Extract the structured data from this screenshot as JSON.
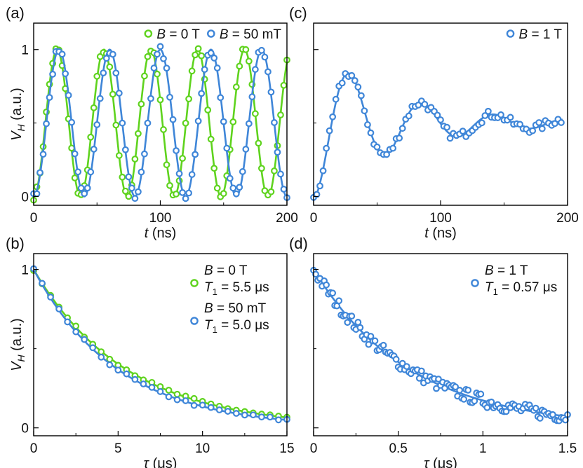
{
  "colors": {
    "green": "#5fd31e",
    "blue": "#3f86d8",
    "axis": "#000000"
  },
  "chart_data": [
    {
      "panel": "a",
      "panel_label": "(a)",
      "type": "scatter",
      "xlabel_var": "t",
      "xlabel_unit": " (ns)",
      "ylabel_var": "V",
      "ylabel_sub": "H",
      "ylabel_unit": " (a.u.)",
      "xlim": [
        0,
        200
      ],
      "ylim": [
        -0.06,
        1.18
      ],
      "xticks": [
        0,
        100,
        200
      ],
      "xtick_labels": [
        "0",
        "100",
        "200"
      ],
      "xminor": [
        50,
        150
      ],
      "yticks": [
        0,
        1
      ],
      "ytick_labels": [
        "0",
        "1"
      ],
      "yminor": [
        0.5
      ],
      "legend_position": "top-right",
      "legend_layout": "row",
      "series": [
        {
          "name": "B = 0 T",
          "legend_var": "B",
          "legend_text": " = 0 T",
          "color_key": "green",
          "model": "rabi",
          "params": {
            "period_ns": 37.0,
            "phase_ns": 0.0
          },
          "x_step": 2.5,
          "x_start": 0,
          "x_end": 200,
          "noise": 0.025
        },
        {
          "name": "B = 50 mT",
          "legend_var": "B",
          "legend_text": " = 50 mT",
          "color_key": "blue",
          "model": "rabi",
          "params": {
            "period_ns": 40.0,
            "phase_ns": 0.0
          },
          "x_step": 2.5,
          "x_start": 0,
          "x_end": 200,
          "noise": 0.025
        }
      ]
    },
    {
      "panel": "c",
      "panel_label": "(c)",
      "type": "scatter",
      "xlabel_var": "t",
      "xlabel_unit": " (ns)",
      "xlim": [
        0,
        200
      ],
      "ylim": [
        -0.06,
        1.18
      ],
      "xticks": [
        0,
        100,
        200
      ],
      "xtick_labels": [
        "0",
        "100",
        "200"
      ],
      "xminor": [
        50,
        150
      ],
      "yticks": [
        0,
        1
      ],
      "ytick_labels": [],
      "yminor": [
        0.5
      ],
      "legend_position": "top-right",
      "legend_layout": "row",
      "series": [
        {
          "name": "B = 1 T",
          "legend_var": "B",
          "legend_text": " = 1 T",
          "color_key": "blue",
          "model": "damped",
          "params": {
            "period_ns": 57.0,
            "tau_ns": 65.0,
            "offset": 0.5,
            "amp": 0.52
          },
          "x_step": 2.5,
          "x_start": 0,
          "x_end": 196,
          "noise": 0.03
        }
      ]
    },
    {
      "panel": "b",
      "panel_label": "(b)",
      "type": "scatter",
      "xlabel_var": "τ",
      "xlabel_unit": " (μs)",
      "ylabel_var": "V",
      "ylabel_sub": "H",
      "ylabel_unit": " (a.u.)",
      "xlim": [
        0,
        15
      ],
      "ylim": [
        -0.05,
        1.1
      ],
      "xticks": [
        0,
        5,
        10,
        15
      ],
      "xtick_labels": [
        "0",
        "5",
        "10",
        "15"
      ],
      "xminor": [
        2.5,
        7.5,
        12.5
      ],
      "yticks": [
        0,
        1
      ],
      "ytick_labels": [
        "0",
        "1"
      ],
      "yminor": [
        0.5
      ],
      "legend_position": "top-right",
      "legend_layout": "column",
      "series": [
        {
          "name": "B = 0 T, T1 = 5.5 μs",
          "legend_var": "B",
          "legend_text": " = 0 T",
          "legend2_var": "T",
          "legend2_sub": "1",
          "legend2_text": " = 5.5 μs",
          "color_key": "green",
          "model": "decay",
          "params": {
            "T1": 5.5,
            "floor": 0.0
          },
          "x_step": 0.5,
          "x_start": 0,
          "x_end": 15,
          "noise": 0.008
        },
        {
          "name": "B = 50 mT, T1 = 5.0 μs",
          "legend_var": "B",
          "legend_text": " = 50 mT",
          "legend2_var": "T",
          "legend2_sub": "1",
          "legend2_text": " = 5.0 μs",
          "color_key": "blue",
          "model": "decay",
          "params": {
            "T1": 5.0,
            "floor": 0.0
          },
          "x_step": 0.5,
          "x_start": 0,
          "x_end": 15,
          "noise": 0.01
        }
      ]
    },
    {
      "panel": "d",
      "panel_label": "(d)",
      "type": "scatter",
      "xlabel_var": "τ",
      "xlabel_unit": " (μs)",
      "xlim": [
        0,
        1.5
      ],
      "ylim": [
        -0.05,
        1.1
      ],
      "xticks": [
        0,
        0.5,
        1,
        1.5
      ],
      "xtick_labels": [
        "0",
        "0.5",
        "1",
        "1.5"
      ],
      "xminor": [
        0.25,
        0.75,
        1.25
      ],
      "yticks": [
        0,
        1
      ],
      "ytick_labels": [],
      "yminor": [
        0.5
      ],
      "legend_position": "top-right",
      "legend_layout": "column",
      "series": [
        {
          "name": "B = 1 T, T1 = 0.57 μs",
          "legend_var": "B",
          "legend_text": " = 1 T",
          "legend2_var": "T",
          "legend2_sub": "1",
          "legend2_text": " = 0.57 μs",
          "color_key": "blue",
          "model": "decay",
          "params": {
            "T1": 0.57,
            "floor": 0.0
          },
          "x_step": 0.0125,
          "x_start": 0,
          "x_end": 1.5,
          "noise": 0.04
        }
      ]
    }
  ]
}
